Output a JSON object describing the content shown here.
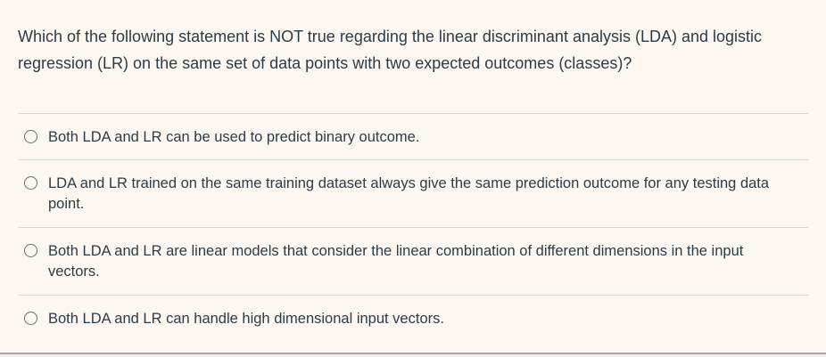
{
  "question": {
    "text": "Which of the following statement is NOT true regarding the linear discriminant analysis (LDA) and logistic regression (LR) on the same set of data points with two expected outcomes (classes)?"
  },
  "options": [
    {
      "text": "Both LDA and LR can be used to predict binary outcome.",
      "selected": false
    },
    {
      "text": "LDA and LR trained on the same training dataset always give the same prediction outcome for any testing data point.",
      "selected": false
    },
    {
      "text": "Both LDA and LR are linear models that consider the linear combination of different dimensions in the input vectors.",
      "selected": false
    },
    {
      "text": "Both LDA and LR can handle high dimensional input vectors.",
      "selected": false
    }
  ],
  "colors": {
    "background": "#fdf7f2",
    "text": "#2d3b45",
    "divider": "#dbd6d1",
    "radio_border": "#6d6d6d",
    "bottom_border": "#a9a6a3"
  }
}
